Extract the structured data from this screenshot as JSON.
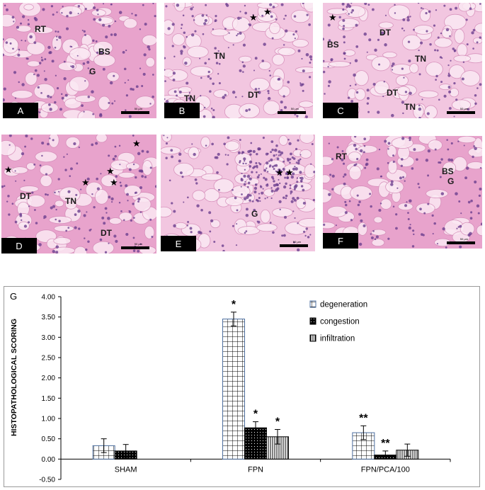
{
  "panels": [
    {
      "id": "A",
      "letter": "A",
      "labels": [
        "RT",
        "BS",
        "G"
      ],
      "stars": 0
    },
    {
      "id": "B",
      "letter": "B",
      "labels": [
        "TN",
        "TN",
        "DT"
      ],
      "stars": 2
    },
    {
      "id": "C",
      "letter": "C",
      "labels": [
        "BS",
        "DT",
        "TN",
        "DT",
        "TN"
      ],
      "stars": 1
    },
    {
      "id": "D",
      "letter": "D",
      "labels": [
        "DT",
        "TN",
        "DT"
      ],
      "stars": 5
    },
    {
      "id": "E",
      "letter": "E",
      "labels": [
        "G"
      ],
      "stars": 2
    },
    {
      "id": "F",
      "letter": "F",
      "labels": [
        "RT",
        "BS",
        "G"
      ],
      "stars": 0
    }
  ],
  "scale_text": "50 μm",
  "colors": {
    "tissue": "#e8a3cc",
    "tissue_light": "#f2c6e0",
    "nuclei": "#6b3f8f",
    "lumen": "#fbe9f3"
  },
  "chart_data": {
    "type": "bar",
    "panel_letter": "G",
    "categories": [
      "SHAM",
      "FPN",
      "FPN/PCA/100"
    ],
    "series": [
      {
        "name": "degeneration",
        "pattern": "grid",
        "values": [
          0.33,
          3.45,
          0.65
        ],
        "errors": [
          0.17,
          0.17,
          0.17
        ]
      },
      {
        "name": "congestion",
        "pattern": "dots",
        "values": [
          0.2,
          0.77,
          0.1
        ],
        "errors": [
          0.16,
          0.15,
          0.1
        ]
      },
      {
        "name": "infiltration",
        "pattern": "vlines",
        "values": [
          0.0,
          0.55,
          0.22
        ],
        "errors": [
          0.0,
          0.18,
          0.15
        ]
      }
    ],
    "annotations": [
      {
        "category": 1,
        "series": 0,
        "text": "*"
      },
      {
        "category": 1,
        "series": 1,
        "text": "*"
      },
      {
        "category": 1,
        "series": 2,
        "text": "*"
      },
      {
        "category": 2,
        "series": 0,
        "text": "**"
      },
      {
        "category": 2,
        "series": 1,
        "text": "**"
      }
    ],
    "ylabel": "HISTOPATHOLOGICAL SCORING",
    "ylim": [
      -0.5,
      4.0
    ],
    "yticks": [
      "-0.50",
      "0.00",
      "0.50",
      "1.00",
      "1.50",
      "2.00",
      "2.50",
      "3.00",
      "3.50",
      "4.00"
    ],
    "legend_position": "top-right",
    "grid": false
  }
}
